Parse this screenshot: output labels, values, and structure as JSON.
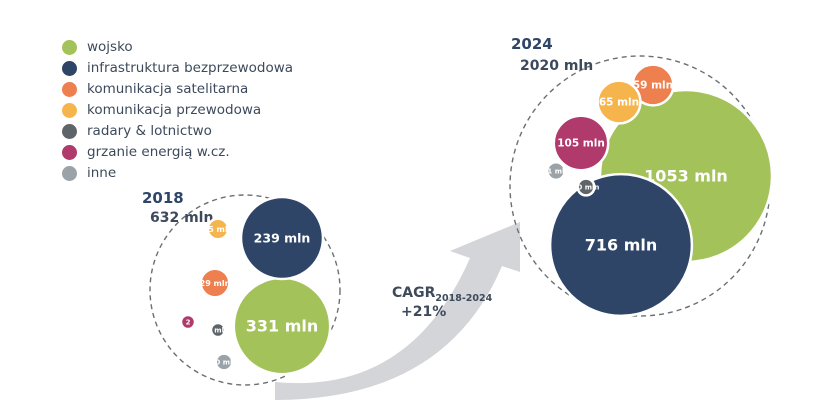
{
  "chart_data": {
    "type": "bubble",
    "title": "",
    "categories": [
      {
        "key": "wojsko",
        "name": "wojsko",
        "color": "#a4c25a"
      },
      {
        "key": "infra",
        "name": "infrastruktura bezprzewodowa",
        "color": "#2e4568"
      },
      {
        "key": "sat",
        "name": "komunikacja satelitarna",
        "color": "#ee7f4f"
      },
      {
        "key": "przew",
        "name": "komunikacja przewodowa",
        "color": "#f6b44d"
      },
      {
        "key": "radar",
        "name": "radary & lotnictwo",
        "color": "#5f6469"
      },
      {
        "key": "grzanie",
        "name": "grzanie energią w.cz.",
        "color": "#b03a6c"
      },
      {
        "key": "inne",
        "name": "inne",
        "color": "#9ba3a9"
      }
    ],
    "groups": [
      {
        "year": "2018",
        "total": "632 mln",
        "values": [
          {
            "key": "wojsko",
            "value": 331,
            "label": "331 mln"
          },
          {
            "key": "infra",
            "value": 239,
            "label": "239 mln"
          },
          {
            "key": "sat",
            "value": 29,
            "label": "29 mln"
          },
          {
            "key": "przew",
            "value": 15,
            "label": "15 mln"
          },
          {
            "key": "radar",
            "value": 6,
            "label": "6 mln"
          },
          {
            "key": "grzanie",
            "value": 2,
            "label": "2"
          },
          {
            "key": "inne",
            "value": 10,
            "label": "10 mln"
          }
        ]
      },
      {
        "year": "2024",
        "total": "2020 mln",
        "values": [
          {
            "key": "wojsko",
            "value": 1053,
            "label": "1053 mln"
          },
          {
            "key": "infra",
            "value": 716,
            "label": "716 mln"
          },
          {
            "key": "sat",
            "value": 59,
            "label": "59 mln"
          },
          {
            "key": "przew",
            "value": 65,
            "label": "65 mln"
          },
          {
            "key": "radar",
            "value": 10,
            "label": "10 mln"
          },
          {
            "key": "grzanie",
            "value": 105,
            "label": "105 mln"
          },
          {
            "key": "inne",
            "value": 11,
            "label": "11 mln"
          }
        ]
      }
    ],
    "cagr": {
      "label": "CAGR",
      "period": "2018-2024",
      "value": "+21%"
    }
  }
}
